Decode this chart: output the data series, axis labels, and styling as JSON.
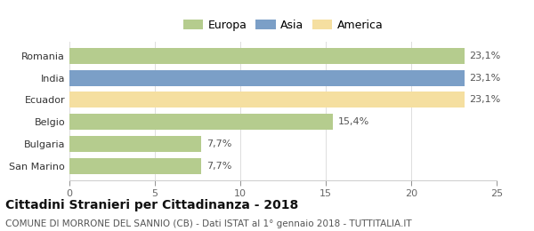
{
  "categories": [
    "San Marino",
    "Bulgaria",
    "Belgio",
    "Ecuador",
    "India",
    "Romania"
  ],
  "values": [
    7.7,
    7.7,
    15.4,
    23.1,
    23.1,
    23.1
  ],
  "bar_colors": [
    "#b5cc8e",
    "#b5cc8e",
    "#b5cc8e",
    "#f5dfa0",
    "#7b9fc7",
    "#b5cc8e"
  ],
  "bar_labels": [
    "7,7%",
    "7,7%",
    "15,4%",
    "23,1%",
    "23,1%",
    "23,1%"
  ],
  "legend_labels": [
    "Europa",
    "Asia",
    "America"
  ],
  "legend_colors": [
    "#b5cc8e",
    "#7b9fc7",
    "#f5dfa0"
  ],
  "title": "Cittadini Stranieri per Cittadinanza - 2018",
  "subtitle": "COMUNE DI MORRONE DEL SANNIO (CB) - Dati ISTAT al 1° gennaio 2018 - TUTTITALIA.IT",
  "xlim": [
    0,
    25
  ],
  "xticks": [
    0,
    5,
    10,
    15,
    20,
    25
  ],
  "title_fontsize": 10,
  "subtitle_fontsize": 7.5,
  "label_fontsize": 8,
  "tick_fontsize": 8,
  "legend_fontsize": 9,
  "background_color": "#ffffff"
}
